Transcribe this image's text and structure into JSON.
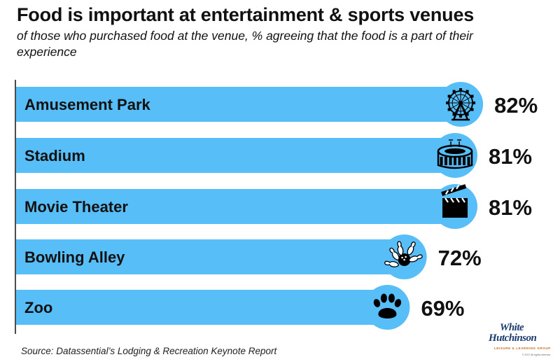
{
  "header": {
    "title": "Food is important at entertainment & sports venues",
    "subtitle": "of those who purchased food at the venue, % agreeing that the food is a part of their experience"
  },
  "footer": {
    "source": "Source: Datassential’s Lodging & Recreation Keynote Report"
  },
  "logo": {
    "line1": "White",
    "line2": "Hutchinson",
    "tagline": "LEISURE & LEARNING GROUP",
    "copyright": "© 2017 All rights reserved"
  },
  "colors": {
    "bar": "#58bef8",
    "axis": "#111111",
    "label_text": "#111111"
  },
  "chart_data": {
    "type": "bar",
    "orientation": "horizontal",
    "title": "Food is important at entertainment & sports venues",
    "subtitle": "of those who purchased food at the venue, % agreeing that the food is a part of their experience",
    "categories": [
      "Amusement Park",
      "Stadium",
      "Movie Theater",
      "Bowling Alley",
      "Zoo"
    ],
    "values": [
      82,
      81,
      81,
      72,
      69
    ],
    "value_labels": [
      "82%",
      "81%",
      "81%",
      "72%",
      "69%"
    ],
    "icons": [
      "ferris-wheel-icon",
      "stadium-icon",
      "clapperboard-icon",
      "bowling-pins-icon",
      "paw-print-icon"
    ],
    "unit": "%",
    "xlabel": "",
    "ylabel": "",
    "grid": false,
    "legend": "none"
  }
}
